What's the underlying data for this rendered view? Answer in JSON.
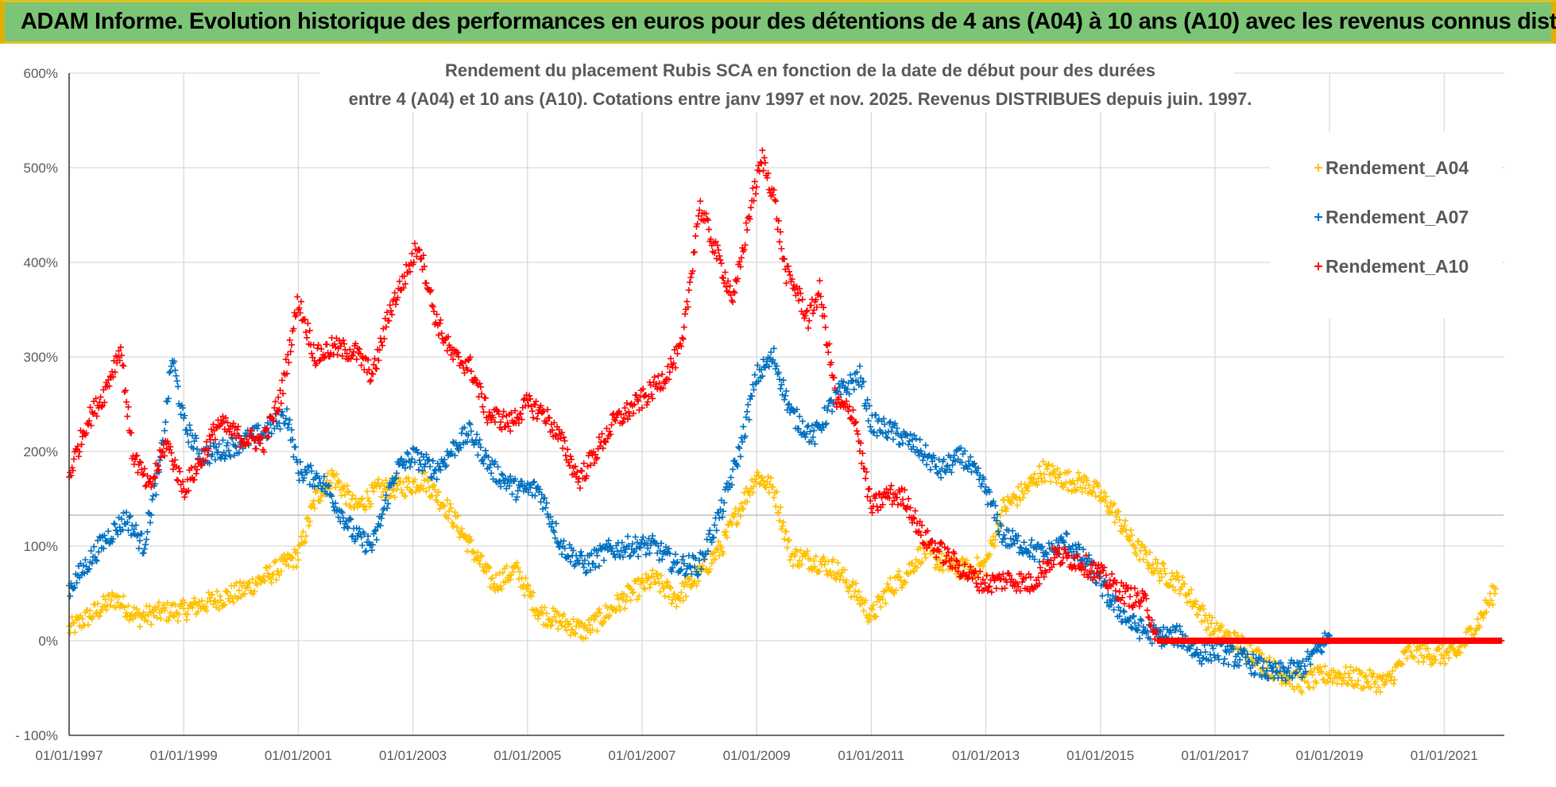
{
  "banner": {
    "title": "ADAM Informe. Evolution historique des performances en euros pour des détentions de 4 ans (A04) à 10 ans (A10) avec les revenus connus distribués"
  },
  "colors": {
    "A04": "#ffc000",
    "A07": "#0070c0",
    "A10": "#ff0000",
    "banner": "#7cc576"
  },
  "chart_data": {
    "type": "scatter",
    "title_line1": "Rendement du placement Rubis SCA en fonction de la date de début pour des durées",
    "title_line2": "entre 4 (A04) et 10 ans (A10). Cotations entre janv 1997 et nov. 2025. Revenus DISTRIBUES depuis juin. 1997.",
    "xlabel": "",
    "ylabel": "",
    "xlim": [
      1997.0,
      2022.05
    ],
    "ylim": [
      -100,
      600
    ],
    "grid": true,
    "legend_position": "right",
    "y_ticks": [
      "- 100%",
      "0%",
      "100%",
      "200%",
      "300%",
      "400%",
      "500%",
      "600%"
    ],
    "x_ticks": [
      "01/01/1997",
      "01/01/1999",
      "01/01/2001",
      "01/01/2003",
      "01/01/2005",
      "01/01/2007",
      "01/01/2009",
      "01/01/2011",
      "01/01/2013",
      "01/01/2015",
      "01/01/2017",
      "01/01/2019",
      "01/01/2021"
    ],
    "series": [
      {
        "name": "Rendement_A04",
        "color": "#ffc000",
        "points": [
          [
            1997.0,
            12
          ],
          [
            1997.4,
            28
          ],
          [
            1997.8,
            45
          ],
          [
            1998.2,
            25
          ],
          [
            1998.6,
            30
          ],
          [
            1999.0,
            32
          ],
          [
            1999.5,
            42
          ],
          [
            2000.0,
            52
          ],
          [
            2000.5,
            70
          ],
          [
            2001.0,
            90
          ],
          [
            2001.3,
            150
          ],
          [
            2001.6,
            175
          ],
          [
            2002.0,
            140
          ],
          [
            2002.4,
            160
          ],
          [
            2002.8,
            162
          ],
          [
            2003.2,
            170
          ],
          [
            2003.6,
            140
          ],
          [
            2004.0,
            100
          ],
          [
            2004.4,
            60
          ],
          [
            2004.8,
            75
          ],
          [
            2005.2,
            30
          ],
          [
            2005.6,
            20
          ],
          [
            2006.0,
            10
          ],
          [
            2006.4,
            30
          ],
          [
            2006.8,
            50
          ],
          [
            2007.2,
            65
          ],
          [
            2007.6,
            45
          ],
          [
            2008.0,
            70
          ],
          [
            2008.4,
            100
          ],
          [
            2008.7,
            140
          ],
          [
            2009.0,
            175
          ],
          [
            2009.3,
            160
          ],
          [
            2009.6,
            90
          ],
          [
            2010.0,
            85
          ],
          [
            2010.4,
            75
          ],
          [
            2010.8,
            45
          ],
          [
            2011.0,
            25
          ],
          [
            2011.3,
            55
          ],
          [
            2011.6,
            70
          ],
          [
            2011.9,
            95
          ],
          [
            2012.3,
            80
          ],
          [
            2012.7,
            75
          ],
          [
            2013.0,
            80
          ],
          [
            2013.3,
            140
          ],
          [
            2013.7,
            160
          ],
          [
            2014.0,
            180
          ],
          [
            2014.4,
            170
          ],
          [
            2014.8,
            165
          ],
          [
            2015.2,
            140
          ],
          [
            2015.6,
            100
          ],
          [
            2016.0,
            75
          ],
          [
            2016.4,
            60
          ],
          [
            2016.7,
            35
          ],
          [
            2017.0,
            10
          ],
          [
            2017.5,
            -5
          ],
          [
            2018.0,
            -30
          ],
          [
            2018.5,
            -45
          ],
          [
            2019.0,
            -35
          ],
          [
            2019.5,
            -40
          ],
          [
            2020.0,
            -45
          ],
          [
            2020.4,
            -10
          ],
          [
            2020.8,
            -15
          ],
          [
            2021.2,
            -15
          ],
          [
            2021.6,
            20
          ],
          [
            2021.9,
            55
          ]
        ]
      },
      {
        "name": "Rendement_A07",
        "color": "#0070c0",
        "points": [
          [
            1997.0,
            55
          ],
          [
            1997.3,
            80
          ],
          [
            1997.6,
            105
          ],
          [
            1998.0,
            130
          ],
          [
            1998.3,
            100
          ],
          [
            1998.6,
            190
          ],
          [
            1998.8,
            300
          ],
          [
            1999.0,
            230
          ],
          [
            1999.3,
            195
          ],
          [
            1999.6,
            200
          ],
          [
            2000.0,
            210
          ],
          [
            2000.4,
            220
          ],
          [
            2000.8,
            240
          ],
          [
            2001.0,
            180
          ],
          [
            2001.4,
            170
          ],
          [
            2001.7,
            140
          ],
          [
            2002.0,
            110
          ],
          [
            2002.3,
            100
          ],
          [
            2002.7,
            180
          ],
          [
            2003.0,
            195
          ],
          [
            2003.4,
            180
          ],
          [
            2003.8,
            210
          ],
          [
            2004.0,
            220
          ],
          [
            2004.4,
            180
          ],
          [
            2004.8,
            160
          ],
          [
            2005.2,
            160
          ],
          [
            2005.6,
            100
          ],
          [
            2006.0,
            80
          ],
          [
            2006.4,
            95
          ],
          [
            2006.8,
            100
          ],
          [
            2007.2,
            100
          ],
          [
            2007.6,
            80
          ],
          [
            2008.0,
            80
          ],
          [
            2008.4,
            140
          ],
          [
            2008.7,
            200
          ],
          [
            2009.0,
            280
          ],
          [
            2009.3,
            300
          ],
          [
            2009.6,
            240
          ],
          [
            2010.0,
            215
          ],
          [
            2010.4,
            260
          ],
          [
            2010.8,
            280
          ],
          [
            2011.0,
            230
          ],
          [
            2011.4,
            220
          ],
          [
            2011.8,
            205
          ],
          [
            2012.2,
            180
          ],
          [
            2012.6,
            195
          ],
          [
            2013.0,
            160
          ],
          [
            2013.3,
            110
          ],
          [
            2013.7,
            100
          ],
          [
            2014.0,
            90
          ],
          [
            2014.4,
            105
          ],
          [
            2014.8,
            80
          ],
          [
            2015.2,
            40
          ],
          [
            2015.6,
            15
          ],
          [
            2016.0,
            5
          ],
          [
            2016.4,
            5
          ],
          [
            2016.7,
            -15
          ],
          [
            2017.0,
            -10
          ],
          [
            2017.5,
            -20
          ],
          [
            2018.0,
            -35
          ],
          [
            2018.5,
            -30
          ],
          [
            2019.0,
            5
          ]
        ]
      },
      {
        "name": "Rendement_A10",
        "color": "#ff0000",
        "points": [
          [
            1997.0,
            175
          ],
          [
            1997.3,
            230
          ],
          [
            1997.6,
            260
          ],
          [
            1997.9,
            310
          ],
          [
            1998.1,
            200
          ],
          [
            1998.4,
            160
          ],
          [
            1998.7,
            210
          ],
          [
            1999.0,
            160
          ],
          [
            1999.3,
            190
          ],
          [
            1999.6,
            230
          ],
          [
            2000.0,
            215
          ],
          [
            2000.4,
            210
          ],
          [
            2000.7,
            260
          ],
          [
            2001.0,
            360
          ],
          [
            2001.3,
            300
          ],
          [
            2001.6,
            310
          ],
          [
            2002.0,
            305
          ],
          [
            2002.3,
            280
          ],
          [
            2002.6,
            350
          ],
          [
            2002.9,
            390
          ],
          [
            2003.1,
            420
          ],
          [
            2003.4,
            340
          ],
          [
            2003.7,
            300
          ],
          [
            2004.0,
            290
          ],
          [
            2004.3,
            240
          ],
          [
            2004.7,
            230
          ],
          [
            2005.0,
            250
          ],
          [
            2005.3,
            240
          ],
          [
            2005.6,
            210
          ],
          [
            2005.9,
            170
          ],
          [
            2006.2,
            200
          ],
          [
            2006.5,
            230
          ],
          [
            2006.8,
            245
          ],
          [
            2007.1,
            260
          ],
          [
            2007.4,
            280
          ],
          [
            2007.7,
            310
          ],
          [
            2008.0,
            460
          ],
          [
            2008.3,
            410
          ],
          [
            2008.6,
            360
          ],
          [
            2008.9,
            460
          ],
          [
            2009.1,
            510
          ],
          [
            2009.3,
            470
          ],
          [
            2009.5,
            390
          ],
          [
            2009.7,
            370
          ],
          [
            2009.9,
            340
          ],
          [
            2010.1,
            370
          ],
          [
            2010.4,
            250
          ],
          [
            2010.7,
            240
          ],
          [
            2011.0,
            140
          ],
          [
            2011.3,
            155
          ],
          [
            2011.6,
            150
          ],
          [
            2011.9,
            110
          ],
          [
            2012.3,
            90
          ],
          [
            2012.7,
            70
          ],
          [
            2013.0,
            60
          ],
          [
            2013.4,
            65
          ],
          [
            2013.8,
            60
          ],
          [
            2014.2,
            90
          ],
          [
            2014.6,
            85
          ],
          [
            2015.0,
            70
          ],
          [
            2015.4,
            50
          ],
          [
            2015.8,
            40
          ],
          [
            2016.0,
            0
          ],
          [
            2016.5,
            0
          ],
          [
            2017.0,
            0
          ],
          [
            2017.5,
            0
          ],
          [
            2018.0,
            0
          ],
          [
            2018.5,
            0
          ],
          [
            2019.0,
            0
          ],
          [
            2019.5,
            0
          ],
          [
            2020.0,
            0
          ],
          [
            2020.5,
            0
          ],
          [
            2021.0,
            0
          ],
          [
            2021.5,
            0
          ],
          [
            2022.0,
            0
          ]
        ]
      }
    ]
  }
}
